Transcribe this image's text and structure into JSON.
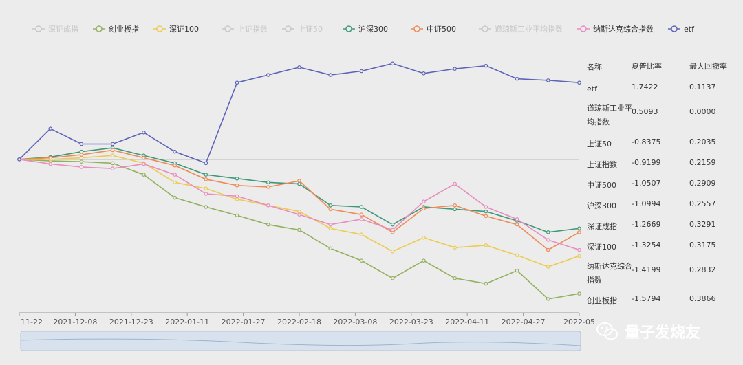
{
  "legend": [
    {
      "name": "深证成指",
      "color": "#c8c8c8",
      "active": false
    },
    {
      "name": "创业板指",
      "color": "#91b05c",
      "active": true
    },
    {
      "name": "深证100",
      "color": "#eccb4e",
      "active": true
    },
    {
      "name": "上证指数",
      "color": "#c8c8c8",
      "active": false
    },
    {
      "name": "上证50",
      "color": "#c8c8c8",
      "active": false
    },
    {
      "name": "沪深300",
      "color": "#3e9878",
      "active": true
    },
    {
      "name": "中证500",
      "color": "#ee8a55",
      "active": true
    },
    {
      "name": "道琼斯工业平均指数",
      "color": "#c8c8c8",
      "active": false
    },
    {
      "name": "纳斯达克综合指数",
      "color": "#ea8bbd",
      "active": true
    },
    {
      "name": "etf",
      "color": "#5c63b8",
      "active": true
    }
  ],
  "chart_data": {
    "type": "line",
    "x_ticks": [
      "11-22",
      "2021-12-08",
      "2021-12-23",
      "2022-01-11",
      "2022-01-27",
      "2022-02-18",
      "2022-03-08",
      "2022-03-23",
      "2022-04-11",
      "2022-04-27",
      "2022-05"
    ],
    "series": [
      {
        "name": "创业板指",
        "color": "#91b05c",
        "values": [
          0.0,
          -0.02,
          -0.03,
          -0.05,
          -0.2,
          -0.5,
          -0.62,
          -0.73,
          -0.85,
          -0.92,
          -1.16,
          -1.32,
          -1.55,
          -1.32,
          -1.55,
          -1.62,
          -1.45,
          -1.82,
          -1.75
        ]
      },
      {
        "name": "深证100",
        "color": "#eccb4e",
        "values": [
          0.0,
          0.0,
          0.02,
          0.05,
          -0.05,
          -0.3,
          -0.38,
          -0.52,
          -0.6,
          -0.68,
          -0.9,
          -0.98,
          -1.2,
          -1.02,
          -1.15,
          -1.12,
          -1.25,
          -1.4,
          -1.26
        ]
      },
      {
        "name": "沪深300",
        "color": "#3e9878",
        "values": [
          0.0,
          0.03,
          0.1,
          0.15,
          0.05,
          -0.05,
          -0.2,
          -0.25,
          -0.3,
          -0.32,
          -0.6,
          -0.62,
          -0.85,
          -0.62,
          -0.65,
          -0.68,
          -0.8,
          -0.95,
          -0.9
        ]
      },
      {
        "name": "中证500",
        "color": "#ee8a55",
        "values": [
          0.0,
          0.02,
          0.06,
          0.12,
          0.02,
          -0.08,
          -0.26,
          -0.34,
          -0.36,
          -0.28,
          -0.65,
          -0.72,
          -0.95,
          -0.64,
          -0.6,
          -0.74,
          -0.85,
          -1.18,
          -0.95
        ]
      },
      {
        "name": "纳斯达克综合指数",
        "color": "#ea8bbd",
        "values": [
          0.0,
          -0.06,
          -0.1,
          -0.12,
          -0.06,
          -0.2,
          -0.45,
          -0.48,
          -0.6,
          -0.72,
          -0.85,
          -0.78,
          -0.92,
          -0.55,
          -0.32,
          -0.62,
          -0.78,
          -1.05,
          -1.18
        ]
      },
      {
        "name": "etf",
        "color": "#5c63b8",
        "values": [
          0.0,
          0.4,
          0.2,
          0.2,
          0.35,
          0.1,
          -0.05,
          1.0,
          1.1,
          1.2,
          1.1,
          1.15,
          1.25,
          1.12,
          1.18,
          1.22,
          1.05,
          1.03,
          1.0
        ]
      }
    ]
  },
  "table": {
    "headers": [
      "名称",
      "夏普比率",
      "最大回撤率"
    ],
    "rows": [
      {
        "name": "etf",
        "sharpe": "1.7422",
        "mdd": "0.1137"
      },
      {
        "name": "道琼斯工业平均指数",
        "sharpe": "0.5093",
        "mdd": "0.0000"
      },
      {
        "name": "上证50",
        "sharpe": "-0.8375",
        "mdd": "0.2035"
      },
      {
        "name": "上证指数",
        "sharpe": "-0.9199",
        "mdd": "0.2159"
      },
      {
        "name": "中证500",
        "sharpe": "-1.0507",
        "mdd": "0.2909"
      },
      {
        "name": "沪深300",
        "sharpe": "-1.0994",
        "mdd": "0.2557"
      },
      {
        "name": "深证成指",
        "sharpe": "-1.2669",
        "mdd": "0.3291"
      },
      {
        "name": "深证100",
        "sharpe": "-1.3254",
        "mdd": "0.3175"
      },
      {
        "name": "纳斯达克综合指数",
        "sharpe": "-1.4199",
        "mdd": "0.2832"
      },
      {
        "name": "创业板指",
        "sharpe": "-1.5794",
        "mdd": "0.3866"
      }
    ]
  },
  "watermark": "量子发烧友"
}
